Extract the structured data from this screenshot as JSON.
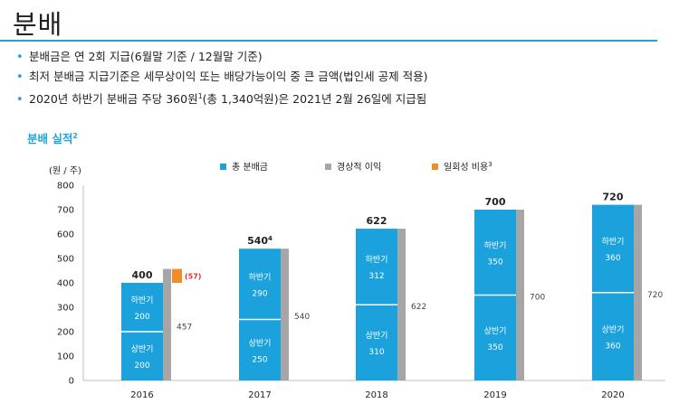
{
  "page": {
    "title": "분배",
    "bullets": [
      {
        "text": "분배금은 연 2회 지급(6월말 기준 / 12월말 기준)"
      },
      {
        "text": "최저 분배금 지급기준은 세무상이익 또는 배당가능이익 중 큰 금액(법인세 공제 적용)"
      },
      {
        "text": "2020년 하반기 분배금 주당 360원",
        "sup": "1",
        "tail": "(총 1,340억원)은 2021년 2월 26일에 지급됨"
      }
    ],
    "section_title": "분배 실적",
    "section_title_sup": "2"
  },
  "colors": {
    "blue": "#1ba1dc",
    "gray": "#a6a6a6",
    "orange": "#f28c28",
    "accent": "#1fa3d8"
  },
  "chart_data": {
    "type": "bar",
    "unit_label": "(원 / 주)",
    "ylim": [
      0,
      800
    ],
    "yticks": [
      0,
      100,
      200,
      300,
      400,
      500,
      600,
      700,
      800
    ],
    "legend": [
      {
        "name": "총 분배금",
        "color": "#1ba1dc"
      },
      {
        "name": "경상적 이익",
        "color": "#a6a6a6"
      },
      {
        "name": "일회성 비용",
        "sup": "3",
        "color": "#f28c28"
      }
    ],
    "categories": [
      "2016",
      "2017",
      "2018",
      "2019",
      "2020"
    ],
    "first_half_label": "상반기",
    "second_half_label": "하반기",
    "first_half": [
      200,
      250,
      310,
      350,
      360
    ],
    "second_half": [
      200,
      290,
      312,
      350,
      360
    ],
    "total": [
      400,
      540,
      622,
      700,
      720
    ],
    "total_sup": [
      "",
      "4",
      "",
      "",
      ""
    ],
    "recurring_profit": [
      457,
      540,
      622,
      700,
      720
    ],
    "one_off_cost": [
      -57,
      null,
      null,
      null,
      null
    ],
    "one_off_label": "(57)"
  }
}
